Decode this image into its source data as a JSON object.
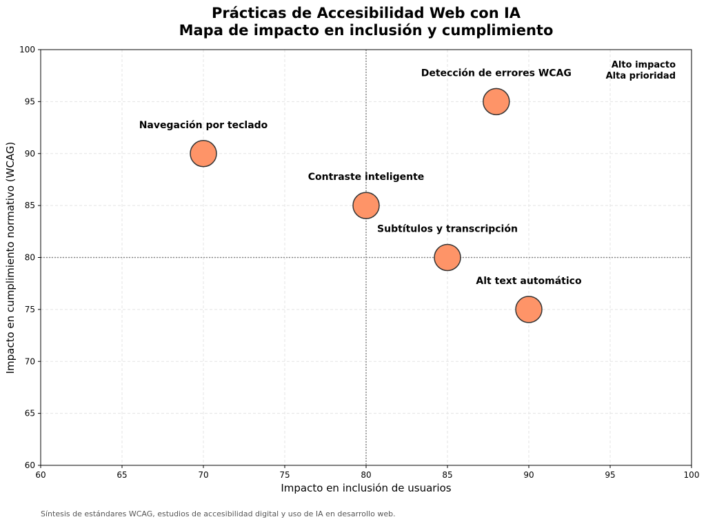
{
  "chart_data": {
    "type": "scatter",
    "title": "Prácticas de Accesibilidad Web con IA",
    "subtitle": "Mapa de impacto en inclusión y cumplimiento",
    "xlabel": "Impacto en inclusión de usuarios",
    "ylabel": "Impacto en cumplimiento normativo (WCAG)",
    "xlim": [
      60,
      100
    ],
    "ylim": [
      60,
      100
    ],
    "xticks": [
      60,
      65,
      70,
      75,
      80,
      85,
      90,
      95,
      100
    ],
    "yticks": [
      60,
      65,
      70,
      75,
      80,
      85,
      90,
      95,
      100
    ],
    "grid": true,
    "reference_lines": {
      "x": 80,
      "y": 80
    },
    "points": [
      {
        "label": "Navegación por teclado",
        "x": 70,
        "y": 90
      },
      {
        "label": "Detección de errores WCAG",
        "x": 88,
        "y": 95
      },
      {
        "label": "Contraste inteligente",
        "x": 80,
        "y": 85
      },
      {
        "label": "Subtítulos y transcripción",
        "x": 85,
        "y": 80
      },
      {
        "label": "Alt text automático",
        "x": 90,
        "y": 75
      }
    ],
    "annotation": [
      "Alto impacto",
      "Alta prioridad"
    ],
    "marker_color": "#fe9468",
    "marker_edge_color": "#333333",
    "source_note": "Síntesis de estándares WCAG, estudios de accesibilidad digital y uso de IA en desarrollo web."
  }
}
